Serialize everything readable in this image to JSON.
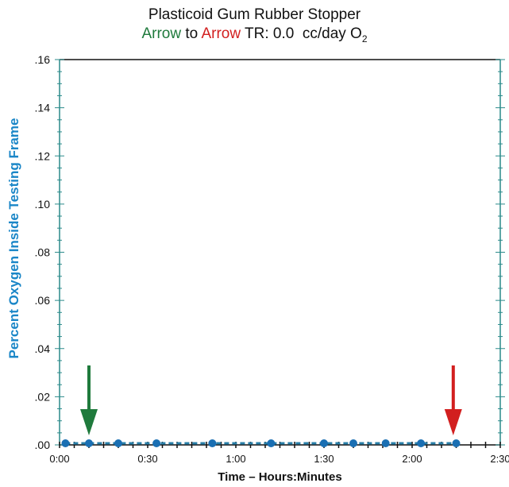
{
  "title": {
    "line1": "Plasticoid Gum Rubber Stopper",
    "line2_arrow_a": "Arrow",
    "line2_to": " to ",
    "line2_arrow_b": "Arrow",
    "line2_rest": " TR: 0.0  cc/day O",
    "line2_sub": "2"
  },
  "colors": {
    "accent_green": "#1f7a3c",
    "accent_red": "#d21f1f",
    "axis_teal": "#2a8a8a",
    "series_blue": "#1a6fb3"
  },
  "chart_data": {
    "type": "scatter",
    "xlabel": "Time – Hours:Minutes",
    "ylabel": "Percent Oxygen  Inside Testing Frame",
    "xlim": [
      0,
      150
    ],
    "ylim": [
      0,
      0.16
    ],
    "x_ticks": [
      {
        "value": 0,
        "label": "0:00"
      },
      {
        "value": 30,
        "label": "0:30"
      },
      {
        "value": 60,
        "label": "1:00"
      },
      {
        "value": 90,
        "label": "1:30"
      },
      {
        "value": 120,
        "label": "2:00"
      },
      {
        "value": 150,
        "label": "2:30"
      }
    ],
    "y_ticks": [
      {
        "value": 0,
        "label": ".00"
      },
      {
        "value": 0.02,
        "label": ".02"
      },
      {
        "value": 0.04,
        "label": ".04"
      },
      {
        "value": 0.06,
        "label": ".06"
      },
      {
        "value": 0.08,
        "label": ".08"
      },
      {
        "value": 0.1,
        "label": ".10"
      },
      {
        "value": 0.12,
        "label": ".12"
      },
      {
        "value": 0.14,
        "label": ".14"
      },
      {
        "value": 0.16,
        "label": ".16"
      }
    ],
    "series": [
      {
        "x": [
          2,
          10,
          20,
          33,
          52,
          72,
          90,
          100,
          111,
          123,
          135
        ],
        "y": [
          0,
          0,
          0,
          0,
          0,
          0,
          0,
          0,
          0,
          0,
          0
        ]
      }
    ],
    "arrows": [
      {
        "color": "green",
        "x": 10
      },
      {
        "color": "red",
        "x": 134
      }
    ]
  }
}
